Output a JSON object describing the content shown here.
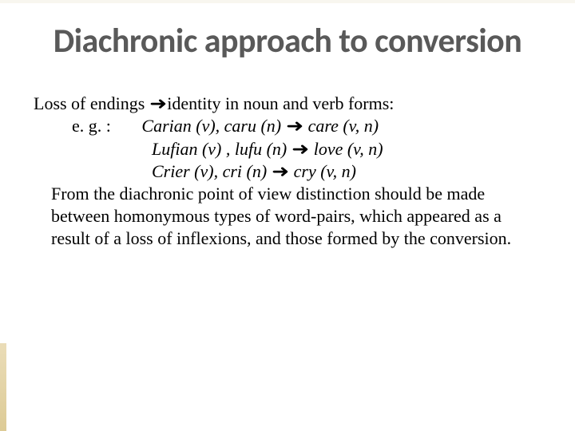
{
  "title": "Diachronic approach to conversion",
  "lead": {
    "part1": "Loss of endings ",
    "arrow": "➜",
    "part2": "identity in noun and verb forms:"
  },
  "eg_label": "e. g. :",
  "examples": [
    {
      "old": "Carian (v), caru (n)",
      "arrow": "➜",
      "new": "care (v, n)"
    },
    {
      "old": "Lufian (v) , lufu (n)",
      "arrow": "➜",
      "new": "love (v, n)"
    },
    {
      "old": "Crier (v), cri (n)",
      "arrow": "➜",
      "new": "cry (v, n)"
    }
  ],
  "paragraph": "From the diachronic point of view distinction should be made between homonymous types of word-pairs, which appeared as a result of a loss of inflexions, and those formed by the conversion.",
  "colors": {
    "title_color": "#595959",
    "body_color": "#000000",
    "background": "#ffffff",
    "decor": "#d9c58a"
  },
  "fonts": {
    "title_size_pt": 32,
    "body_size_pt": 17
  }
}
